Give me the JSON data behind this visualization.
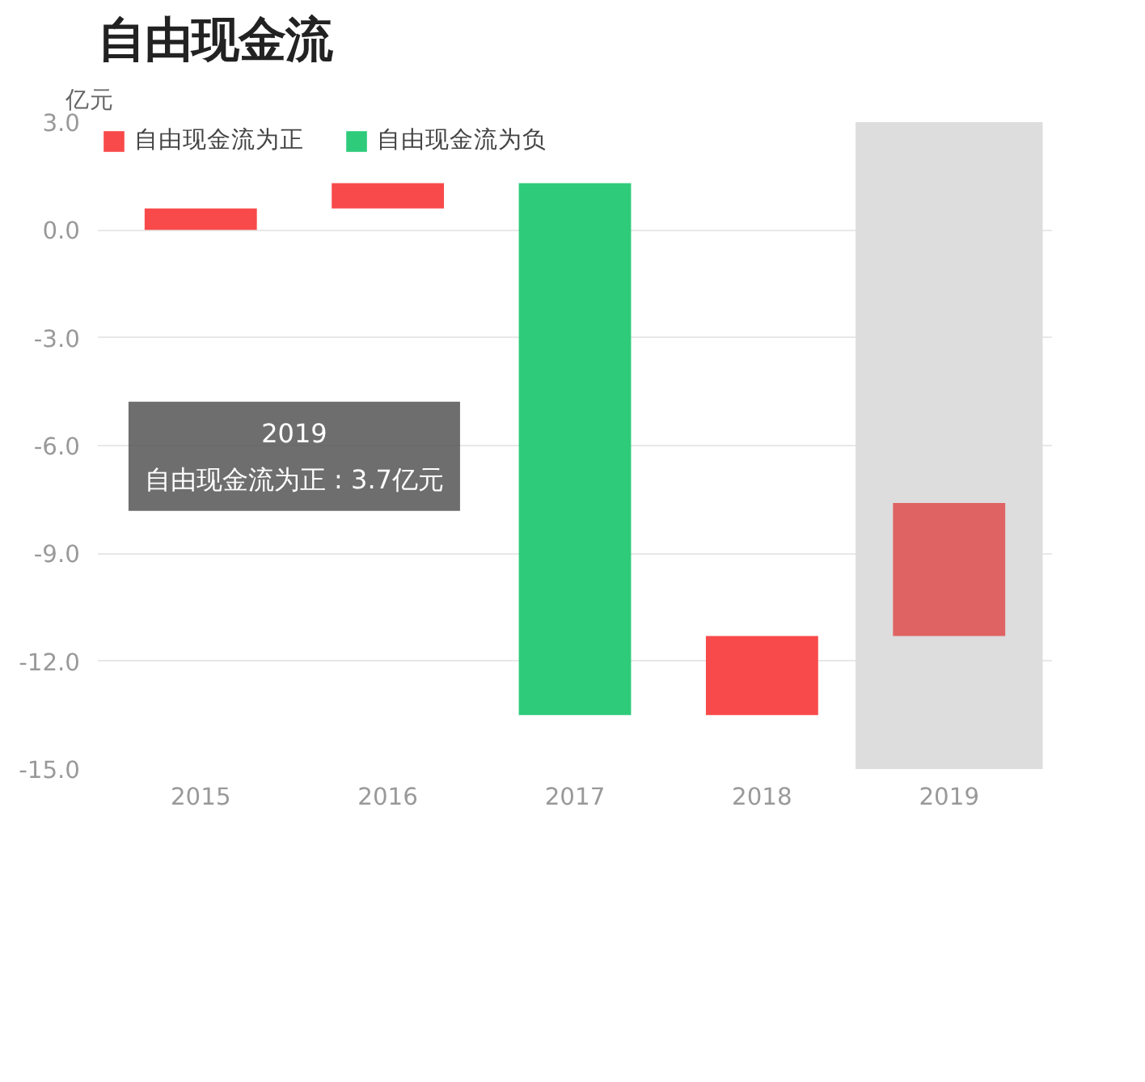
{
  "chart_data": {
    "type": "bar",
    "title": "自由现金流",
    "ylabel": "亿元",
    "categories": [
      "2015",
      "2016",
      "2017",
      "2018",
      "2019"
    ],
    "series": [
      {
        "name": "自由现金流为正",
        "color": "#f84a4a",
        "colors": [
          "#f84a4a",
          "#f84a4a",
          "#f84a4a",
          "#f84a4a",
          "#e06363"
        ],
        "values": [
          0.6,
          0.7,
          null,
          2.2,
          3.7
        ],
        "base": [
          0,
          0.6,
          null,
          -13.5,
          -11.3
        ]
      },
      {
        "name": "自由现金流为负",
        "color": "#2ecb7b",
        "values": [
          null,
          null,
          -14.8,
          null,
          null
        ],
        "base": [
          null,
          null,
          1.3,
          null,
          null
        ]
      }
    ],
    "ylim": [
      -15,
      3
    ],
    "yticks": [
      {
        "value": 3,
        "label": "3.0"
      },
      {
        "value": 0,
        "label": "0.0"
      },
      {
        "value": -3,
        "label": "-3.0"
      },
      {
        "value": -6,
        "label": "-6.0"
      },
      {
        "value": -9,
        "label": "-9.0"
      },
      {
        "value": -12,
        "label": "-12.0"
      },
      {
        "value": -15,
        "label": "-15.0"
      }
    ],
    "bands": [
      {
        "axis": "x",
        "from": "2019",
        "to": "2019",
        "color": "#dddddd"
      }
    ],
    "annotations": [
      "2019\n自由现金流为正 : 3.7亿元"
    ],
    "grid": "y",
    "legend": "top left"
  }
}
